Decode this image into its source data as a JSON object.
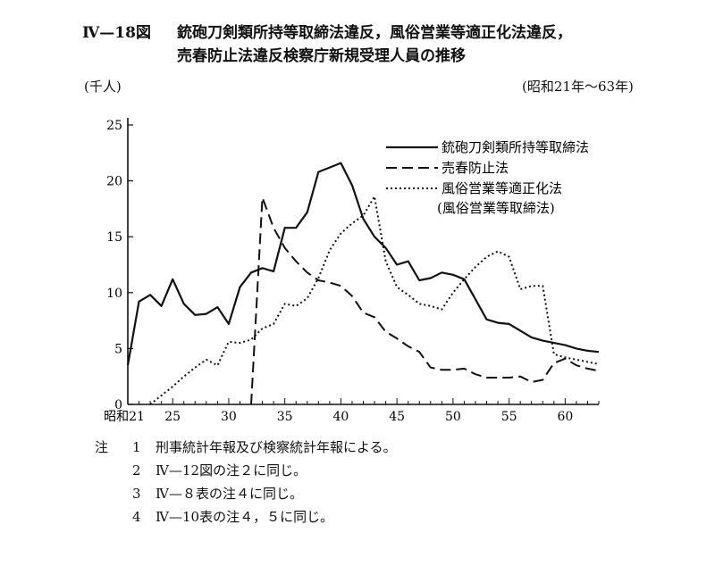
{
  "figure": {
    "number": "Ⅳ—18図",
    "title_line1": "銃砲刀剣類所持等取締法違反，風俗営業等適正化法違反，",
    "title_line2": "売春防止法違反検察庁新規受理人員の推移",
    "unit": "(千人)",
    "period": "(昭和21年～63年)"
  },
  "chart_data": {
    "type": "line",
    "ylabel": "(千人)",
    "ylim": [
      0,
      25
    ],
    "yticks": [
      0,
      5,
      10,
      15,
      20,
      25
    ],
    "xlim": [
      21,
      63
    ],
    "xticks": [
      {
        "value": 21,
        "label": "昭和21"
      },
      {
        "value": 25,
        "label": "25"
      },
      {
        "value": 30,
        "label": "30"
      },
      {
        "value": 35,
        "label": "35"
      },
      {
        "value": 40,
        "label": "40"
      },
      {
        "value": 45,
        "label": "45"
      },
      {
        "value": 50,
        "label": "50"
      },
      {
        "value": 55,
        "label": "55"
      },
      {
        "value": 60,
        "label": "60"
      }
    ],
    "series": [
      {
        "name": "銃砲刀剣類所持等取締法",
        "style": "solid",
        "x": [
          21,
          22,
          23,
          24,
          25,
          26,
          27,
          28,
          29,
          30,
          31,
          32,
          33,
          34,
          35,
          36,
          37,
          38,
          39,
          40,
          41,
          42,
          43,
          44,
          45,
          46,
          47,
          48,
          49,
          50,
          51,
          52,
          53,
          54,
          55,
          56,
          57,
          58,
          59,
          60,
          61,
          62,
          63
        ],
        "y": [
          3.5,
          9.2,
          9.8,
          8.8,
          11.2,
          9.0,
          8.0,
          8.1,
          8.7,
          7.2,
          10.5,
          11.8,
          12.2,
          11.9,
          15.8,
          15.8,
          17.2,
          20.8,
          21.2,
          21.6,
          19.6,
          16.6,
          15.0,
          14.0,
          12.5,
          12.8,
          11.1,
          11.3,
          11.8,
          11.6,
          11.2,
          9.4,
          7.6,
          7.3,
          7.2,
          6.6,
          6.0,
          5.7,
          5.5,
          5.3,
          5.0,
          4.8,
          4.7
        ]
      },
      {
        "name": "売春防止法",
        "style": "dashed",
        "x": [
          32,
          33,
          34,
          35,
          36,
          37,
          38,
          39,
          40,
          41,
          42,
          43,
          44,
          45,
          46,
          47,
          48,
          49,
          50,
          51,
          52,
          53,
          54,
          55,
          56,
          57,
          58,
          59,
          60,
          61,
          62,
          63
        ],
        "y": [
          0,
          18.5,
          15.8,
          14.0,
          12.8,
          11.8,
          11.1,
          10.9,
          10.6,
          9.7,
          8.2,
          7.8,
          6.5,
          5.9,
          5.2,
          4.7,
          3.3,
          3.1,
          3.1,
          3.2,
          2.7,
          2.4,
          2.4,
          2.4,
          2.5,
          2.0,
          2.2,
          3.7,
          4.1,
          3.5,
          3.2,
          3.0
        ]
      },
      {
        "name": "風俗営業等適正化法\n(風俗営業等取締法)",
        "style": "dotted",
        "x": [
          23,
          24,
          25,
          26,
          27,
          28,
          29,
          30,
          31,
          32,
          33,
          34,
          35,
          36,
          37,
          38,
          39,
          40,
          41,
          42,
          43,
          44,
          45,
          46,
          47,
          48,
          49,
          50,
          51,
          52,
          53,
          54,
          55,
          56,
          57,
          58,
          59,
          60,
          61,
          62,
          63
        ],
        "y": [
          0,
          0.8,
          1.6,
          2.5,
          3.3,
          4.0,
          3.5,
          5.6,
          5.5,
          5.8,
          6.8,
          7.2,
          9.0,
          8.8,
          9.5,
          11.3,
          13.8,
          15.3,
          16.2,
          16.9,
          18.6,
          12.8,
          10.5,
          9.8,
          9.0,
          8.8,
          8.5,
          10.0,
          11.2,
          12.3,
          13.2,
          13.7,
          13.2,
          10.3,
          10.6,
          10.6,
          4.5,
          4.2,
          4.0,
          3.8,
          3.6
        ]
      }
    ],
    "legend_position": "top-right"
  },
  "notes": {
    "lead": "注",
    "items": [
      {
        "num": "1",
        "text": "刑事統計年報及び検察統計年報による。"
      },
      {
        "num": "2",
        "text": "Ⅳ—12図の注２に同じ。"
      },
      {
        "num": "3",
        "text": "Ⅳ—８表の注４に同じ。"
      },
      {
        "num": "4",
        "text": "Ⅳ—10表の注４，５に同じ。"
      }
    ]
  }
}
